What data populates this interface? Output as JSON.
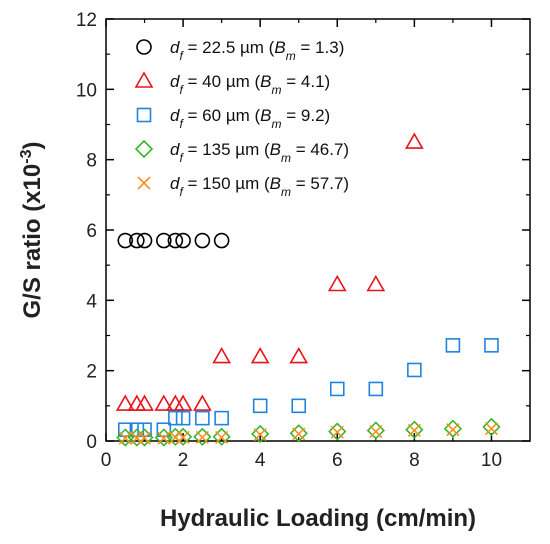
{
  "chart_data": {
    "type": "scatter",
    "title": "",
    "xlabel": "Hydraulic Loading (cm/min)",
    "ylabel": {
      "main": "G/S ratio (x10",
      "exponent": "-3",
      "close": ")"
    },
    "xlim": [
      0,
      11
    ],
    "ylim": [
      0,
      12
    ],
    "xticks": [
      0,
      2,
      4,
      6,
      8,
      10
    ],
    "yticks": [
      0,
      2,
      4,
      6,
      8,
      10,
      12
    ],
    "legend_position": "top-left",
    "grid": false,
    "series": [
      {
        "marker": "circle",
        "color": "#000000",
        "legend": {
          "d_value": "22.5 µm",
          "b_value": "1.3"
        },
        "points": [
          [
            0.5,
            5.7
          ],
          [
            0.8,
            5.7
          ],
          [
            1.0,
            5.7
          ],
          [
            1.5,
            5.7
          ],
          [
            1.8,
            5.7
          ],
          [
            2.0,
            5.7
          ],
          [
            2.5,
            5.7
          ],
          [
            3.0,
            5.7
          ]
        ]
      },
      {
        "marker": "triangle",
        "color": "#e8141c",
        "legend": {
          "d_value": "40 µm",
          "b_value": "4.1"
        },
        "points": [
          [
            0.5,
            1.05
          ],
          [
            0.8,
            1.05
          ],
          [
            1.0,
            1.05
          ],
          [
            1.5,
            1.05
          ],
          [
            1.8,
            1.05
          ],
          [
            2.0,
            1.05
          ],
          [
            2.5,
            1.05
          ],
          [
            3.0,
            2.4
          ],
          [
            4.0,
            2.4
          ],
          [
            5.0,
            2.4
          ],
          [
            6.0,
            4.45
          ],
          [
            7.0,
            4.45
          ],
          [
            8.0,
            8.5
          ]
        ]
      },
      {
        "marker": "square",
        "color": "#1f84e0",
        "legend": {
          "d_value": "60 µm",
          "b_value": "9.2"
        },
        "points": [
          [
            0.5,
            0.32
          ],
          [
            0.8,
            0.32
          ],
          [
            1.0,
            0.32
          ],
          [
            1.5,
            0.32
          ],
          [
            1.8,
            0.65
          ],
          [
            2.0,
            0.65
          ],
          [
            2.5,
            0.65
          ],
          [
            3.0,
            0.65
          ],
          [
            4.0,
            1.0
          ],
          [
            5.0,
            1.0
          ],
          [
            6.0,
            1.48
          ],
          [
            7.0,
            1.48
          ],
          [
            8.0,
            2.02
          ],
          [
            9.0,
            2.72
          ],
          [
            10.0,
            2.72
          ]
        ]
      },
      {
        "marker": "diamond",
        "color": "#3bb52c",
        "legend": {
          "d_value": "135 µm",
          "b_value": "46.7"
        },
        "points": [
          [
            0.5,
            0.1
          ],
          [
            0.8,
            0.1
          ],
          [
            1.0,
            0.1
          ],
          [
            1.5,
            0.1
          ],
          [
            1.8,
            0.12
          ],
          [
            2.0,
            0.12
          ],
          [
            2.5,
            0.12
          ],
          [
            3.0,
            0.12
          ],
          [
            4.0,
            0.2
          ],
          [
            5.0,
            0.22
          ],
          [
            6.0,
            0.27
          ],
          [
            7.0,
            0.3
          ],
          [
            8.0,
            0.32
          ],
          [
            9.0,
            0.35
          ],
          [
            10.0,
            0.4
          ]
        ]
      },
      {
        "marker": "cross",
        "color": "#f5921e",
        "legend": {
          "d_value": "150 µm",
          "b_value": "57.7"
        },
        "points": [
          [
            0.5,
            0.08
          ],
          [
            0.8,
            0.08
          ],
          [
            1.0,
            0.08
          ],
          [
            1.5,
            0.08
          ],
          [
            1.8,
            0.1
          ],
          [
            2.0,
            0.1
          ],
          [
            2.5,
            0.1
          ],
          [
            3.0,
            0.1
          ],
          [
            4.0,
            0.18
          ],
          [
            5.0,
            0.2
          ],
          [
            6.0,
            0.25
          ],
          [
            7.0,
            0.27
          ],
          [
            8.0,
            0.3
          ],
          [
            9.0,
            0.32
          ],
          [
            10.0,
            0.35
          ]
        ]
      }
    ]
  }
}
